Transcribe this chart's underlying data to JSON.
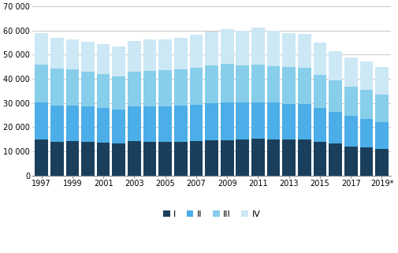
{
  "years": [
    1997,
    1998,
    1999,
    2000,
    2001,
    2002,
    2003,
    2004,
    2005,
    2006,
    2007,
    2008,
    2009,
    2010,
    2011,
    2012,
    2013,
    2014,
    2015,
    2016,
    2017,
    2018,
    2019
  ],
  "Q1": [
    14800,
    13900,
    14300,
    13900,
    13700,
    13400,
    14200,
    13900,
    13900,
    14000,
    14100,
    14400,
    14700,
    14800,
    15100,
    15000,
    14900,
    14900,
    13900,
    13100,
    12000,
    11600,
    10800
  ],
  "Q2": [
    15400,
    14900,
    14700,
    14600,
    14200,
    13800,
    14400,
    14700,
    14800,
    14900,
    15100,
    15500,
    15500,
    15300,
    15200,
    15100,
    14800,
    14700,
    13900,
    13100,
    12600,
    11800,
    11300
  ],
  "Q3": [
    15600,
    15300,
    14800,
    14500,
    14200,
    13900,
    14400,
    14800,
    14800,
    15000,
    15400,
    15600,
    16000,
    15600,
    15600,
    15300,
    15100,
    14900,
    13800,
    13100,
    12100,
    12100,
    11400
  ],
  "Q4": [
    13200,
    13000,
    12600,
    12400,
    12400,
    12200,
    12600,
    12900,
    12800,
    13100,
    13600,
    14100,
    14400,
    14200,
    15200,
    14500,
    14300,
    14100,
    13500,
    12300,
    12100,
    11600,
    11500
  ],
  "colors": [
    "#1a3f5c",
    "#4baee8",
    "#87ceeb",
    "#cce8f5"
  ],
  "legend_labels": [
    "I",
    "II",
    "III",
    "IV"
  ],
  "ylim": [
    0,
    70000
  ],
  "yticks": [
    0,
    10000,
    20000,
    30000,
    40000,
    50000,
    60000,
    70000
  ],
  "ytick_labels": [
    "0",
    "10 000",
    "20 000",
    "30 000",
    "40 000",
    "50 000",
    "60 000",
    "70 000"
  ],
  "xtick_labels": [
    "1997",
    "1999",
    "2001",
    "2003",
    "2005",
    "2007",
    "2009",
    "2011",
    "2013",
    "2015",
    "2017",
    "2019*"
  ],
  "xtick_years": [
    1997,
    1999,
    2001,
    2003,
    2005,
    2007,
    2009,
    2011,
    2013,
    2015,
    2017,
    2019
  ],
  "bar_width": 0.85,
  "bg_color": "#ffffff",
  "grid_color": "#b0b0b0",
  "axis_color": "#555555"
}
